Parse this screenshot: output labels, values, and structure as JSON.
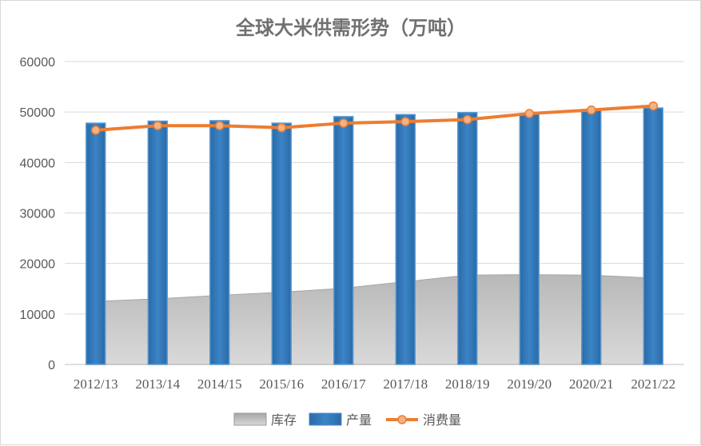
{
  "chart_data": {
    "type": "bar",
    "title": "全球大米供需形势（万吨）",
    "categories": [
      "2012/13",
      "2013/14",
      "2014/15",
      "2015/16",
      "2016/17",
      "2017/18",
      "2018/19",
      "2019/20",
      "2020/21",
      "2021/22"
    ],
    "ylim": [
      0,
      60000
    ],
    "yticks": [
      0,
      10000,
      20000,
      30000,
      40000,
      50000,
      60000
    ],
    "grid": true,
    "legend_position": "bottom",
    "series": [
      {
        "name": "库存",
        "type": "area",
        "color": "#bfbfbf",
        "values": [
          12500,
          13000,
          13700,
          14300,
          15100,
          16400,
          17700,
          17800,
          17700,
          17100
        ]
      },
      {
        "name": "产量",
        "type": "bar",
        "color": "#2e75b6",
        "values": [
          47800,
          48200,
          48300,
          47800,
          49100,
          49500,
          49900,
          49600,
          50500,
          50800
        ]
      },
      {
        "name": "消费量",
        "type": "line",
        "color": "#ed7d31",
        "values": [
          46400,
          47300,
          47300,
          46900,
          47800,
          48100,
          48500,
          49700,
          50400,
          51200
        ]
      }
    ]
  }
}
